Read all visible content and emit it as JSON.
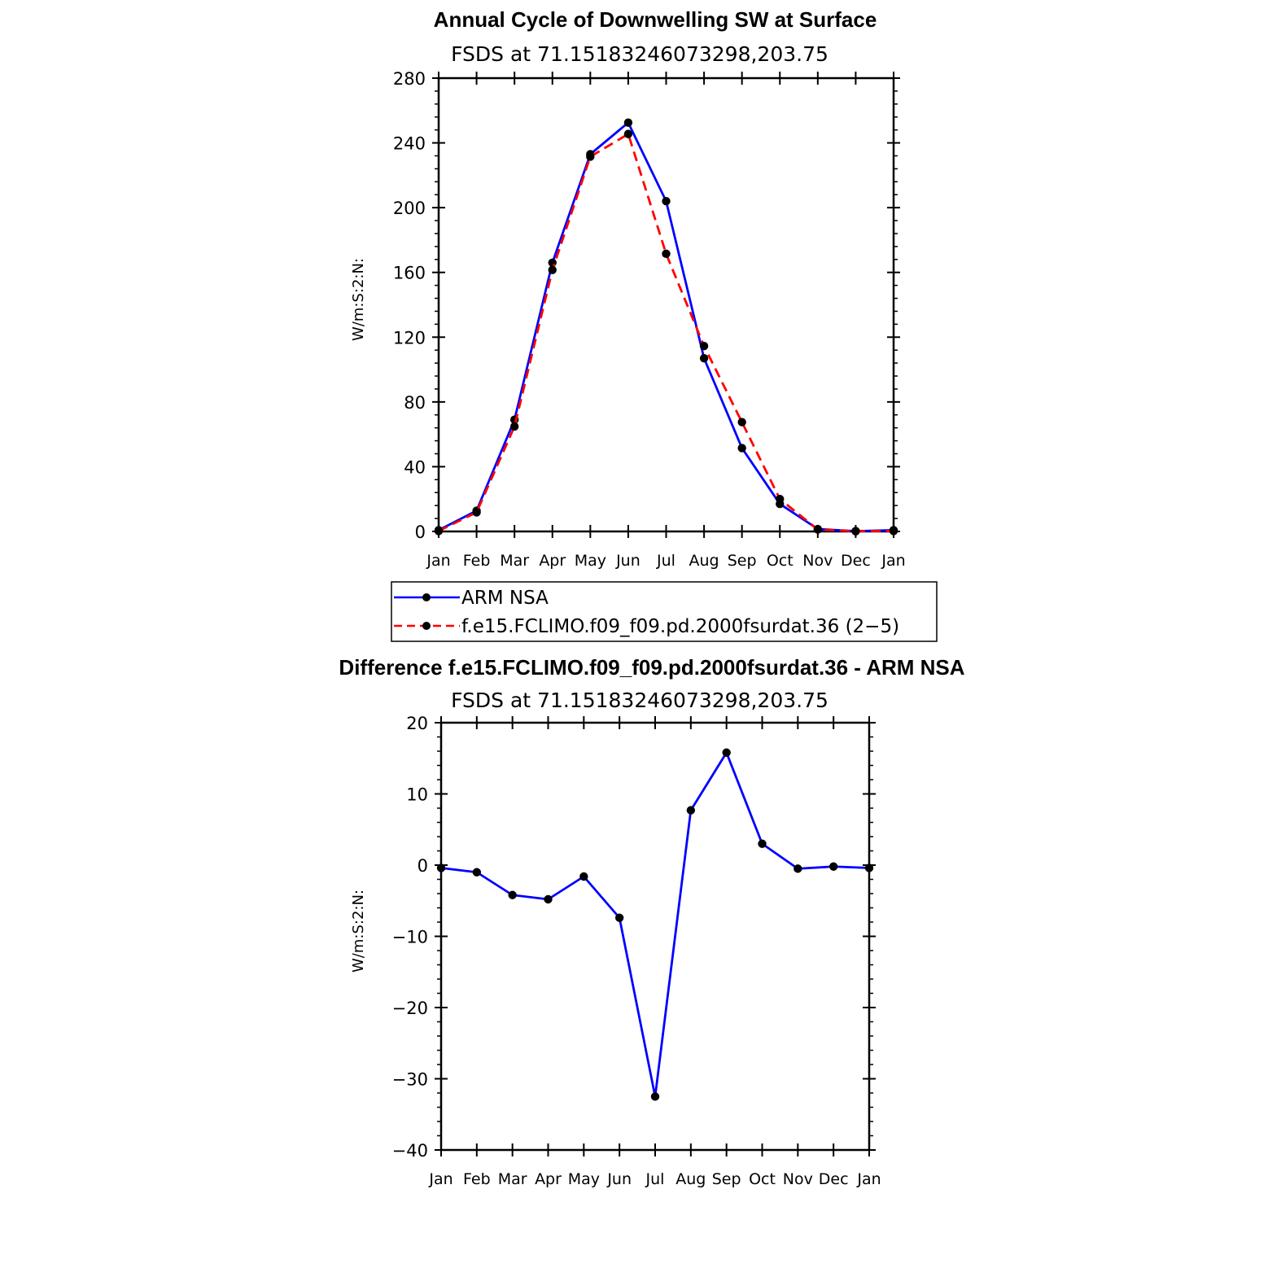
{
  "chart_data": [
    {
      "type": "line",
      "title": "Annual Cycle of Downwelling SW at Surface",
      "subtitle": "FSDS at 71.15183246073298,203.75",
      "xlabel": "",
      "ylabel": "W/m:S:2:N:",
      "categories": [
        "Jan",
        "Feb",
        "Mar",
        "Apr",
        "May",
        "Jun",
        "Jul",
        "Aug",
        "Sep",
        "Oct",
        "Nov",
        "Dec",
        "Jan"
      ],
      "ylim": [
        0,
        280
      ],
      "yticks": [
        0,
        40,
        80,
        120,
        160,
        200,
        240,
        280
      ],
      "series": [
        {
          "name": "ARM NSA",
          "color": "#0000ff",
          "dashed": false,
          "values": [
            0.8,
            12.8,
            69,
            166,
            233,
            252.5,
            204,
            107,
            51.5,
            17,
            1.5,
            0.2,
            0.8
          ]
        },
        {
          "name": "f.e15.FCLIMO.f09_f09.pd.2000fsurdat.36 (2−5)",
          "color": "#ff0000",
          "dashed": true,
          "values": [
            0.3,
            11.8,
            64.8,
            161.5,
            231.5,
            245.5,
            171.5,
            114.5,
            67.5,
            20,
            1.2,
            0.1,
            0.3
          ]
        }
      ],
      "legend_position": "bottom",
      "grid": false
    },
    {
      "type": "line",
      "title": "Difference f.e15.FCLIMO.f09_f09.pd.2000fsurdat.36 - ARM NSA",
      "subtitle": "FSDS at 71.15183246073298,203.75",
      "xlabel": "",
      "ylabel": "W/m:S:2:N:",
      "categories": [
        "Jan",
        "Feb",
        "Mar",
        "Apr",
        "May",
        "Jun",
        "Jul",
        "Aug",
        "Sep",
        "Oct",
        "Nov",
        "Dec",
        "Jan"
      ],
      "ylim": [
        -40,
        20
      ],
      "yticks": [
        -40,
        -30,
        -20,
        -10,
        0,
        10,
        20
      ],
      "ytick_labels": [
        "−40",
        "−30",
        "−20",
        "−10",
        "0",
        "10",
        "20"
      ],
      "series": [
        {
          "name": "",
          "color": "#0000ff",
          "dashed": false,
          "values": [
            -0.4,
            -1,
            -4.2,
            -4.8,
            -1.6,
            -7.4,
            -32.5,
            7.7,
            15.8,
            3,
            -0.5,
            -0.2,
            -0.4
          ]
        }
      ],
      "grid": false
    }
  ]
}
